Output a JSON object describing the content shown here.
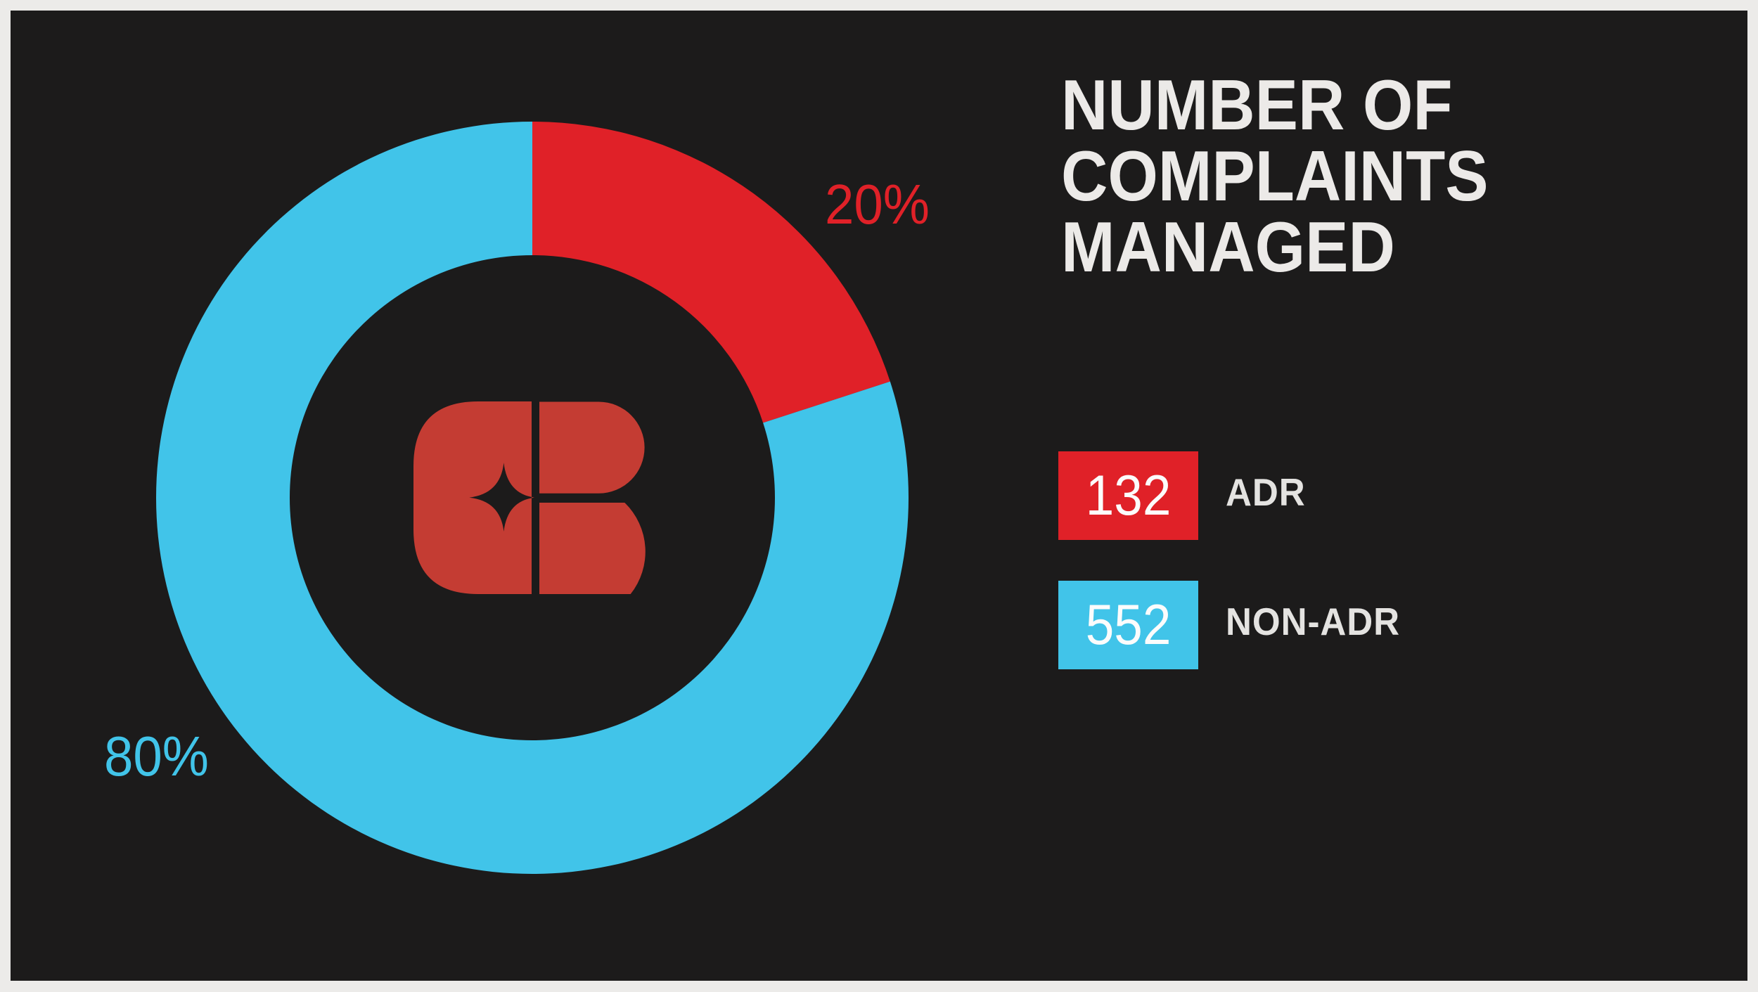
{
  "frame": {
    "border_color": "#ecebe9",
    "background_color": "#1c1b1b"
  },
  "header": {
    "title": "NUMBER OF COMPLAINTS MANAGED",
    "title_lines": [
      "NUMBER OF",
      "COMPLAINTS",
      "MANAGED"
    ],
    "color": "#eceae8"
  },
  "logo": {
    "description": "CR monogram with four-point sparkle cutout",
    "color": "#c43c33"
  },
  "chart_data": {
    "type": "pie",
    "donut": true,
    "title": "NUMBER OF COMPLAINTS MANAGED",
    "start_angle_deg": -90,
    "direction": "clockwise",
    "outer_radius": 535,
    "inner_radius": 345,
    "legend_position": "right",
    "series": [
      {
        "label": "ADR",
        "value": 132,
        "percent": 20,
        "percent_label": "20%",
        "color": "#e02128"
      },
      {
        "label": "NON-ADR",
        "value": 552,
        "percent": 80,
        "percent_label": "80%",
        "color": "#41c4e9"
      }
    ]
  }
}
